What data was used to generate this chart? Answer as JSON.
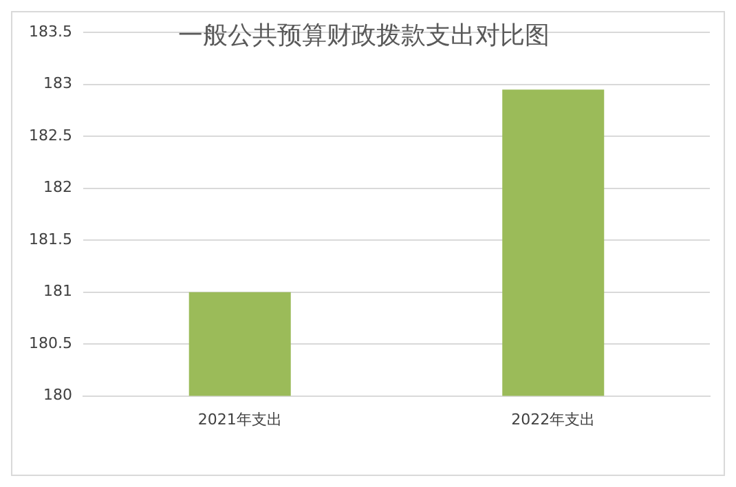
{
  "chart_data": {
    "type": "bar",
    "title": "一般公共预算财政拨款支出对比图",
    "categories": [
      "2021年支出",
      "2022年支出"
    ],
    "values": [
      181,
      182.95
    ],
    "color": "#9bbb59",
    "ylim": [
      180,
      183.5
    ],
    "yticks": [
      180,
      180.5,
      181,
      181.5,
      182,
      182.5,
      183,
      183.5
    ],
    "grid": "y"
  }
}
